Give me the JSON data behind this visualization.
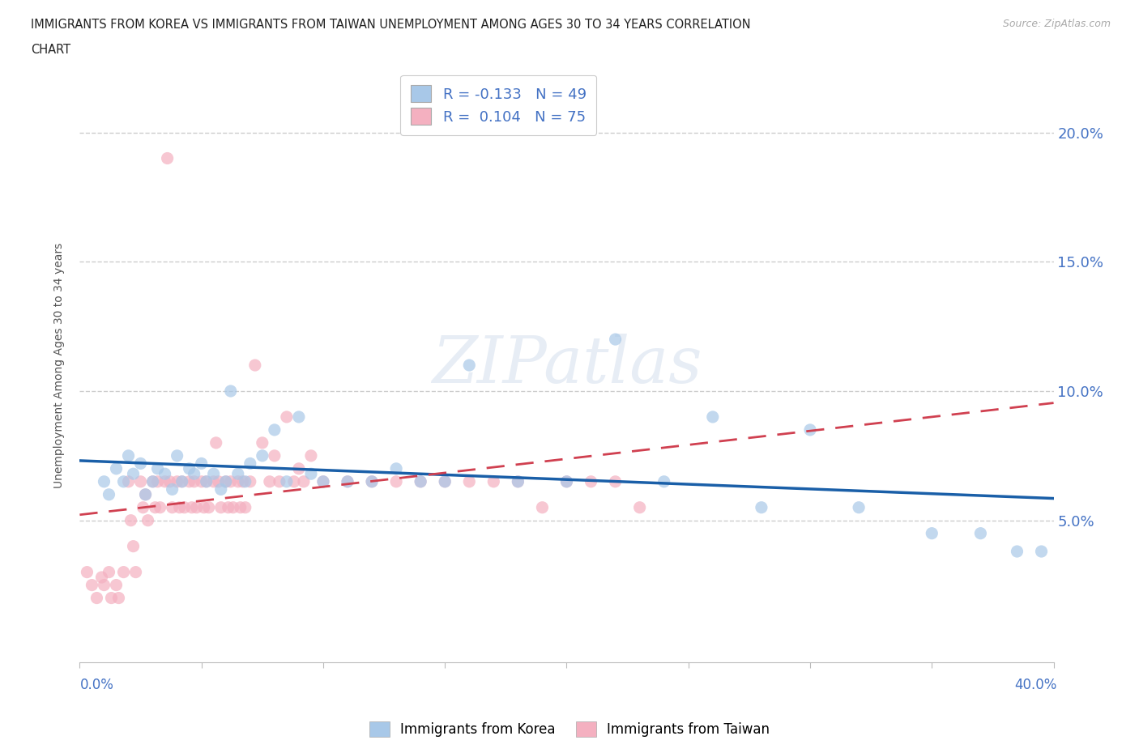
{
  "title": "IMMIGRANTS FROM KOREA VS IMMIGRANTS FROM TAIWAN UNEMPLOYMENT AMONG AGES 30 TO 34 YEARS CORRELATION\nCHART",
  "source": "Source: ZipAtlas.com",
  "xlim": [
    0.0,
    0.4
  ],
  "ylim": [
    -0.005,
    0.225
  ],
  "korea_R": -0.133,
  "korea_N": 49,
  "taiwan_R": 0.104,
  "taiwan_N": 75,
  "korea_color": "#a8c8e8",
  "taiwan_color": "#f4b0c0",
  "korea_line_color": "#1a5fa8",
  "taiwan_line_color": "#d04050",
  "watermark": "ZIPatlas",
  "ytick_values": [
    0.05,
    0.1,
    0.15,
    0.2
  ],
  "ytick_labels": [
    "5.0%",
    "10.0%",
    "15.0%",
    "20.0%"
  ],
  "korea_x": [
    0.01,
    0.012,
    0.015,
    0.018,
    0.02,
    0.022,
    0.025,
    0.027,
    0.03,
    0.032,
    0.035,
    0.038,
    0.04,
    0.042,
    0.045,
    0.047,
    0.05,
    0.052,
    0.055,
    0.058,
    0.06,
    0.062,
    0.065,
    0.068,
    0.07,
    0.075,
    0.08,
    0.085,
    0.09,
    0.095,
    0.1,
    0.11,
    0.12,
    0.13,
    0.14,
    0.15,
    0.16,
    0.18,
    0.2,
    0.22,
    0.24,
    0.26,
    0.28,
    0.3,
    0.32,
    0.35,
    0.37,
    0.385,
    0.395
  ],
  "korea_y": [
    0.065,
    0.06,
    0.07,
    0.065,
    0.075,
    0.068,
    0.072,
    0.06,
    0.065,
    0.07,
    0.068,
    0.062,
    0.075,
    0.065,
    0.07,
    0.068,
    0.072,
    0.065,
    0.068,
    0.062,
    0.065,
    0.1,
    0.068,
    0.065,
    0.072,
    0.075,
    0.085,
    0.065,
    0.09,
    0.068,
    0.065,
    0.065,
    0.065,
    0.07,
    0.065,
    0.065,
    0.11,
    0.065,
    0.065,
    0.12,
    0.065,
    0.09,
    0.055,
    0.085,
    0.055,
    0.045,
    0.045,
    0.038,
    0.038
  ],
  "taiwan_x": [
    0.003,
    0.005,
    0.007,
    0.009,
    0.01,
    0.012,
    0.013,
    0.015,
    0.016,
    0.018,
    0.02,
    0.021,
    0.022,
    0.023,
    0.025,
    0.026,
    0.027,
    0.028,
    0.03,
    0.031,
    0.032,
    0.033,
    0.035,
    0.036,
    0.037,
    0.038,
    0.04,
    0.041,
    0.042,
    0.043,
    0.045,
    0.046,
    0.047,
    0.048,
    0.05,
    0.051,
    0.052,
    0.053,
    0.055,
    0.056,
    0.057,
    0.058,
    0.06,
    0.061,
    0.062,
    0.063,
    0.065,
    0.066,
    0.067,
    0.068,
    0.07,
    0.072,
    0.075,
    0.078,
    0.08,
    0.082,
    0.085,
    0.088,
    0.09,
    0.092,
    0.095,
    0.1,
    0.11,
    0.12,
    0.13,
    0.14,
    0.15,
    0.16,
    0.17,
    0.18,
    0.19,
    0.2,
    0.21,
    0.22,
    0.23
  ],
  "taiwan_y": [
    0.03,
    0.025,
    0.02,
    0.028,
    0.025,
    0.03,
    0.02,
    0.025,
    0.02,
    0.03,
    0.065,
    0.05,
    0.04,
    0.03,
    0.065,
    0.055,
    0.06,
    0.05,
    0.065,
    0.055,
    0.065,
    0.055,
    0.065,
    0.19,
    0.065,
    0.055,
    0.065,
    0.055,
    0.065,
    0.055,
    0.065,
    0.055,
    0.065,
    0.055,
    0.065,
    0.055,
    0.065,
    0.055,
    0.065,
    0.08,
    0.065,
    0.055,
    0.065,
    0.055,
    0.065,
    0.055,
    0.065,
    0.055,
    0.065,
    0.055,
    0.065,
    0.11,
    0.08,
    0.065,
    0.075,
    0.065,
    0.09,
    0.065,
    0.07,
    0.065,
    0.075,
    0.065,
    0.065,
    0.065,
    0.065,
    0.065,
    0.065,
    0.065,
    0.065,
    0.065,
    0.055,
    0.065,
    0.065,
    0.065,
    0.055
  ]
}
